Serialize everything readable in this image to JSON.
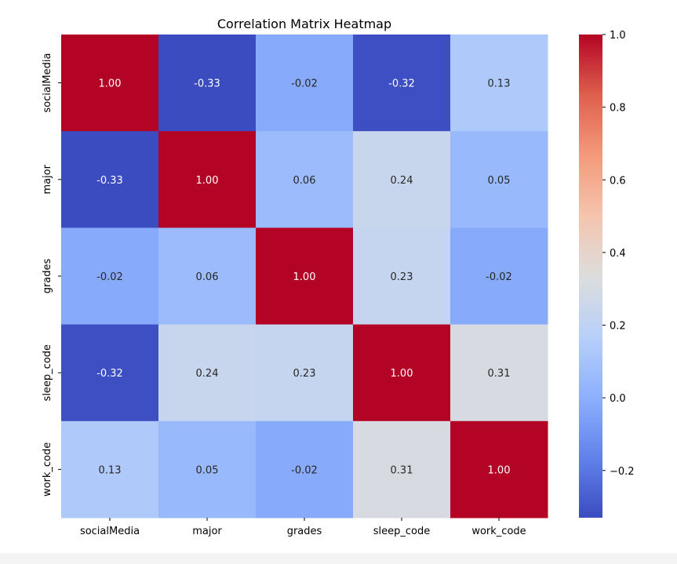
{
  "chart_data": {
    "type": "heatmap",
    "title": "Correlation Matrix Heatmap",
    "xlabel": "",
    "ylabel": "",
    "x_labels": [
      "socialMedia",
      "major",
      "grades",
      "sleep_code",
      "work_code"
    ],
    "y_labels": [
      "socialMedia",
      "major",
      "grades",
      "sleep_code",
      "work_code"
    ],
    "values": [
      [
        1.0,
        -0.33,
        -0.02,
        -0.32,
        0.13
      ],
      [
        -0.33,
        1.0,
        0.06,
        0.24,
        0.05
      ],
      [
        -0.02,
        0.06,
        1.0,
        0.23,
        -0.02
      ],
      [
        -0.32,
        0.24,
        0.23,
        1.0,
        0.31
      ],
      [
        0.13,
        0.05,
        -0.02,
        0.31,
        1.0
      ]
    ],
    "annotation_labels": [
      [
        "1.00",
        "-0.33",
        "-0.02",
        "-0.32",
        "0.13"
      ],
      [
        "-0.33",
        "1.00",
        "0.06",
        "0.24",
        "0.05"
      ],
      [
        "-0.02",
        "0.06",
        "1.00",
        "0.23",
        "-0.02"
      ],
      [
        "-0.32",
        "0.24",
        "0.23",
        "1.00",
        "0.31"
      ],
      [
        "0.13",
        "0.05",
        "-0.02",
        "0.31",
        "1.00"
      ]
    ],
    "colormap": "coolwarm",
    "vmin": -0.33,
    "vmax": 1.0,
    "colorbar_ticks": [
      1.0,
      0.8,
      0.6,
      0.4,
      0.2,
      0.0,
      -0.2
    ],
    "colorbar_tick_labels": [
      "1.0",
      "0.8",
      "0.6",
      "0.4",
      "0.2",
      "0.0",
      "−0.2"
    ],
    "grid": false
  }
}
